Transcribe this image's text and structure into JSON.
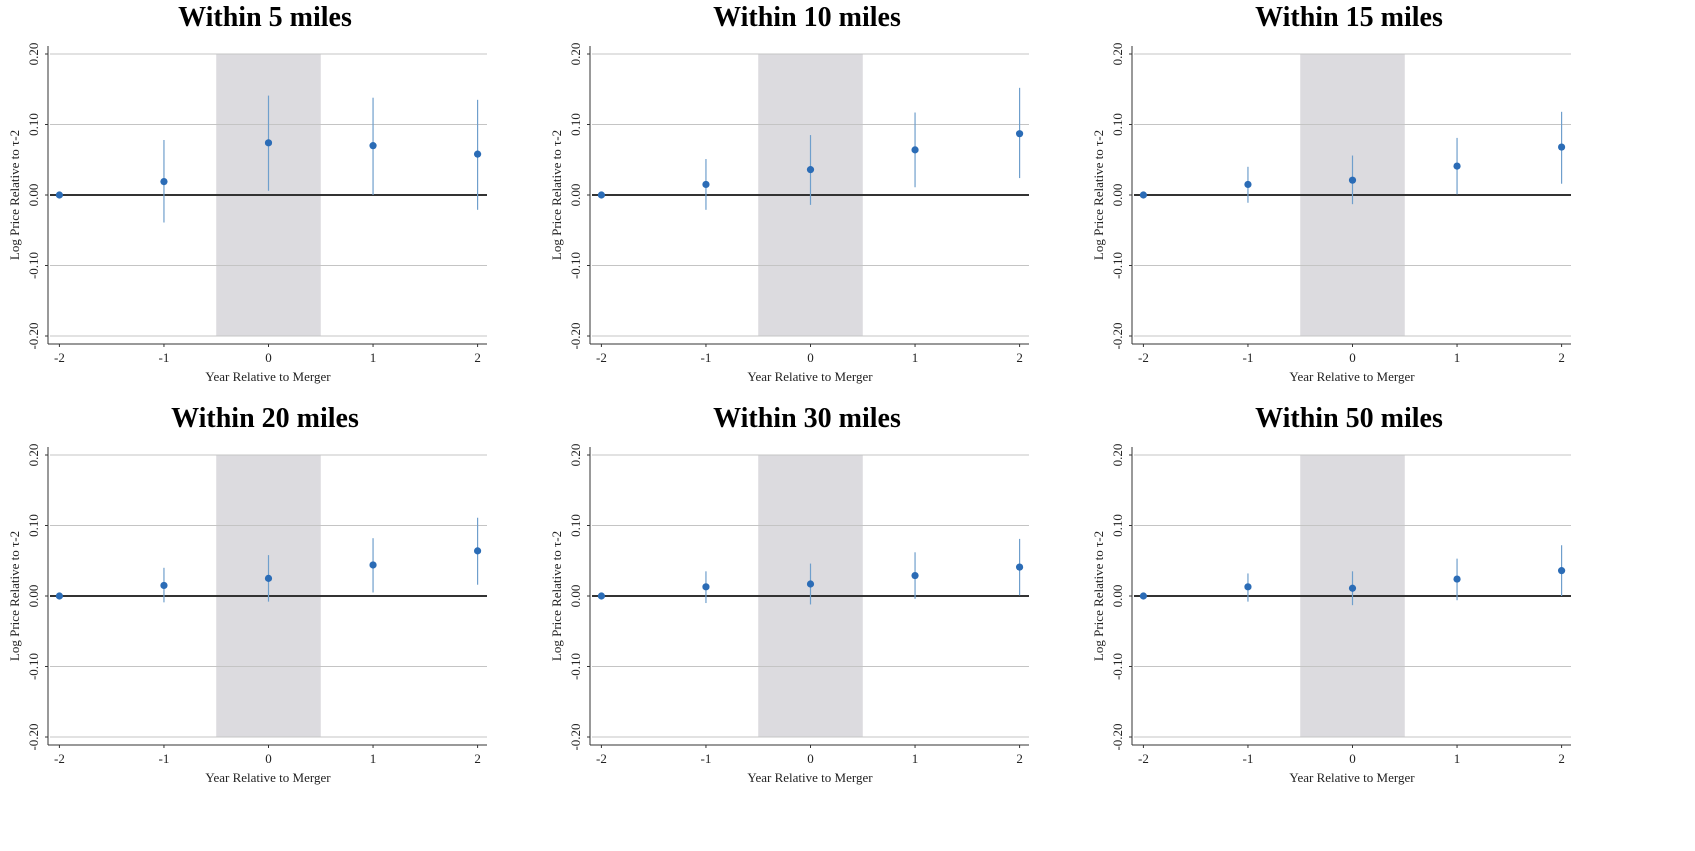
{
  "chart_data": [
    {
      "type": "scatter",
      "title": "Within 5 miles",
      "xlabel": "Year Relative to Merger",
      "ylabel": "Log Price Relative to τ-2",
      "x": [
        -2,
        -1,
        0,
        1,
        2
      ],
      "xticks": [
        "-2",
        "-1",
        "0",
        "1",
        "2"
      ],
      "yticks": [
        "-0.20",
        "-0.10",
        "0.00",
        "0.10",
        "0.20"
      ],
      "ylim": [
        -0.2,
        0.2
      ],
      "shaded_x_range": [
        -0.5,
        0.5
      ],
      "series": [
        {
          "values": [
            0.0,
            0.019,
            0.074,
            0.07,
            0.058
          ],
          "ci_low": [
            0.0,
            -0.039,
            0.006,
            0.0,
            -0.021
          ],
          "ci_high": [
            0.0,
            0.078,
            0.141,
            0.138,
            0.135
          ]
        }
      ]
    },
    {
      "type": "scatter",
      "title": "Within 10 miles",
      "xlabel": "Year Relative to Merger",
      "ylabel": "Log Price Relative to τ-2",
      "x": [
        -2,
        -1,
        0,
        1,
        2
      ],
      "xticks": [
        "-2",
        "-1",
        "0",
        "1",
        "2"
      ],
      "yticks": [
        "-0.20",
        "-0.10",
        "0.00",
        "0.10",
        "0.20"
      ],
      "ylim": [
        -0.2,
        0.2
      ],
      "shaded_x_range": [
        -0.5,
        0.5
      ],
      "series": [
        {
          "values": [
            0.0,
            0.015,
            0.036,
            0.064,
            0.087
          ],
          "ci_low": [
            0.0,
            -0.021,
            -0.014,
            0.011,
            0.024
          ],
          "ci_high": [
            0.0,
            0.051,
            0.085,
            0.117,
            0.152
          ]
        }
      ]
    },
    {
      "type": "scatter",
      "title": "Within 15 miles",
      "xlabel": "Year Relative to Merger",
      "ylabel": "Log Price Relative to τ-2",
      "x": [
        -2,
        -1,
        0,
        1,
        2
      ],
      "xticks": [
        "-2",
        "-1",
        "0",
        "1",
        "2"
      ],
      "yticks": [
        "-0.20",
        "-0.10",
        "0.00",
        "0.10",
        "0.20"
      ],
      "ylim": [
        -0.2,
        0.2
      ],
      "shaded_x_range": [
        -0.5,
        0.5
      ],
      "series": [
        {
          "values": [
            0.0,
            0.015,
            0.021,
            0.041,
            0.068
          ],
          "ci_low": [
            0.0,
            -0.011,
            -0.013,
            0.001,
            0.016
          ],
          "ci_high": [
            0.0,
            0.04,
            0.056,
            0.081,
            0.118
          ]
        }
      ]
    },
    {
      "type": "scatter",
      "title": "Within 20 miles",
      "xlabel": "Year Relative to Merger",
      "ylabel": "Log Price Relative to τ-2",
      "x": [
        -2,
        -1,
        0,
        1,
        2
      ],
      "xticks": [
        "-2",
        "-1",
        "0",
        "1",
        "2"
      ],
      "yticks": [
        "-0.20",
        "-0.10",
        "0.00",
        "0.10",
        "0.20"
      ],
      "ylim": [
        -0.2,
        0.2
      ],
      "shaded_x_range": [
        -0.5,
        0.5
      ],
      "series": [
        {
          "values": [
            0.0,
            0.015,
            0.025,
            0.044,
            0.064
          ],
          "ci_low": [
            0.0,
            -0.009,
            -0.008,
            0.005,
            0.016
          ],
          "ci_high": [
            0.0,
            0.04,
            0.058,
            0.082,
            0.111
          ]
        }
      ]
    },
    {
      "type": "scatter",
      "title": "Within 30 miles",
      "xlabel": "Year Relative to Merger",
      "ylabel": "Log Price Relative to τ-2",
      "x": [
        -2,
        -1,
        0,
        1,
        2
      ],
      "xticks": [
        "-2",
        "-1",
        "0",
        "1",
        "2"
      ],
      "yticks": [
        "-0.20",
        "-0.10",
        "0.00",
        "0.10",
        "0.20"
      ],
      "ylim": [
        -0.2,
        0.2
      ],
      "shaded_x_range": [
        -0.5,
        0.5
      ],
      "series": [
        {
          "values": [
            0.0,
            0.013,
            0.017,
            0.029,
            0.041
          ],
          "ci_low": [
            0.0,
            -0.01,
            -0.012,
            -0.004,
            0.001
          ],
          "ci_high": [
            0.0,
            0.035,
            0.046,
            0.062,
            0.081
          ]
        }
      ]
    },
    {
      "type": "scatter",
      "title": "Within 50 miles",
      "xlabel": "Year Relative to Merger",
      "ylabel": "Log Price Relative to τ-2",
      "x": [
        -2,
        -1,
        0,
        1,
        2
      ],
      "xticks": [
        "-2",
        "-1",
        "0",
        "1",
        "2"
      ],
      "yticks": [
        "-0.20",
        "-0.10",
        "0.00",
        "0.10",
        "0.20"
      ],
      "ylim": [
        -0.2,
        0.2
      ],
      "shaded_x_range": [
        -0.5,
        0.5
      ],
      "series": [
        {
          "values": [
            0.0,
            0.013,
            0.011,
            0.024,
            0.036
          ],
          "ci_low": [
            0.0,
            -0.008,
            -0.013,
            -0.006,
            0.0
          ],
          "ci_high": [
            0.0,
            0.032,
            0.035,
            0.053,
            0.072
          ]
        }
      ]
    }
  ],
  "colors": {
    "point": "#2b6cb6",
    "error_bar": "#6f9fcc",
    "shade": "#dcdbdf",
    "grid": "#c4c4c4",
    "zero_line": "#333333",
    "axis": "#333333"
  }
}
